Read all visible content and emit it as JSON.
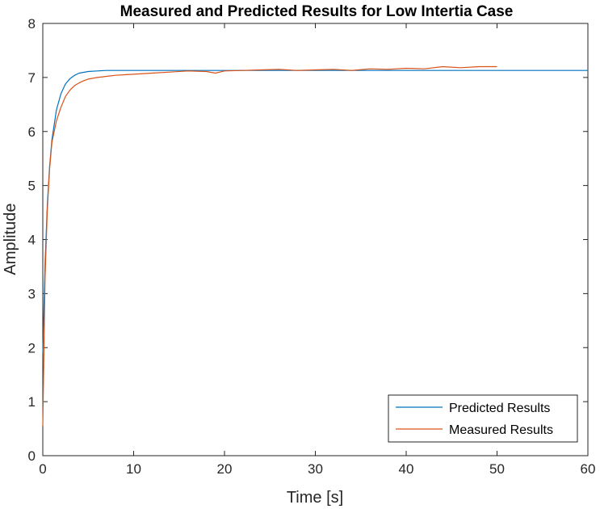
{
  "chart_data": {
    "type": "line",
    "title": "Measured and Predicted Results for Low Intertia Case",
    "xlabel": "Time [s]",
    "ylabel": "Amplitude",
    "xlim": [
      0,
      60
    ],
    "ylim": [
      0,
      8
    ],
    "xticks": [
      0,
      10,
      20,
      30,
      40,
      50,
      60
    ],
    "yticks": [
      0,
      1,
      2,
      3,
      4,
      5,
      6,
      7,
      8
    ],
    "grid": false,
    "legend_position": "bottom-right",
    "series": [
      {
        "name": "Predicted Results",
        "color": "#0072BD",
        "x": [
          0,
          0.25,
          0.5,
          0.75,
          1,
          1.5,
          2,
          2.5,
          3,
          3.5,
          4,
          5,
          6,
          7,
          8,
          10,
          12,
          15,
          20,
          30,
          40,
          50,
          60
        ],
        "y": [
          1.9,
          3.55,
          4.65,
          5.35,
          5.85,
          6.4,
          6.7,
          6.88,
          6.98,
          7.04,
          7.08,
          7.11,
          7.12,
          7.13,
          7.13,
          7.13,
          7.13,
          7.13,
          7.13,
          7.13,
          7.13,
          7.13,
          7.13
        ]
      },
      {
        "name": "Measured Results",
        "color": "#D95319",
        "x": [
          0,
          0.25,
          0.5,
          0.75,
          1,
          1.5,
          2,
          2.5,
          3,
          3.5,
          4,
          4.5,
          5,
          6,
          7,
          8,
          9,
          10,
          12,
          14,
          16,
          18,
          19,
          20,
          22,
          24,
          26,
          28,
          30,
          32,
          34,
          36,
          38,
          40,
          42,
          44,
          46,
          48,
          50
        ],
        "y": [
          0.55,
          3.3,
          4.55,
          5.3,
          5.8,
          6.2,
          6.45,
          6.65,
          6.77,
          6.85,
          6.9,
          6.94,
          6.97,
          7.0,
          7.02,
          7.04,
          7.05,
          7.06,
          7.08,
          7.1,
          7.12,
          7.11,
          7.08,
          7.12,
          7.13,
          7.14,
          7.15,
          7.13,
          7.14,
          7.15,
          7.13,
          7.16,
          7.15,
          7.17,
          7.16,
          7.2,
          7.18,
          7.2,
          7.2
        ]
      }
    ]
  }
}
